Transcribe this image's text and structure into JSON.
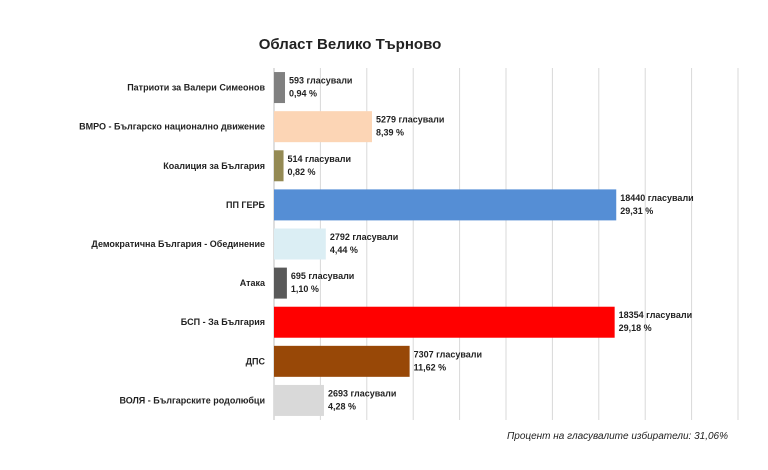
{
  "chart_data": {
    "type": "bar",
    "orientation": "horizontal",
    "title": "Област Велико Търново",
    "xlim": [
      0,
      25000
    ],
    "grid": true,
    "categories": [
      "Патриоти за Валери Симеонов",
      "ВМРО - Българско национално движение",
      "Коалиция за България",
      "ПП ГЕРБ",
      "Демократична България - Обединение",
      "Атака",
      "БСП - За България",
      "ДПС",
      "ВОЛЯ - Българските родолюбци"
    ],
    "values": [
      593,
      5279,
      514,
      18440,
      2792,
      695,
      18354,
      7307,
      2693
    ],
    "value_labels": [
      "593 гласували",
      "5279 гласували",
      "514 гласували",
      "18440 гласували",
      "2792 гласували",
      "695 гласували",
      "18354 гласували",
      "7307 гласували",
      "2693 гласували"
    ],
    "percent_labels": [
      "0,94 %",
      "8,39 %",
      "0,82 %",
      "29,31 %",
      "4,44 %",
      "1,10 %",
      "29,18 %",
      "11,62 %",
      "4,28 %"
    ],
    "colors": [
      "#808080",
      "#fcd5b5",
      "#948a54",
      "#558ed5",
      "#dbeef4",
      "#595959",
      "#ff0000",
      "#984807",
      "#d9d9d9"
    ]
  },
  "footnote": "Процент на гласувалите избиратели: 31,06%"
}
